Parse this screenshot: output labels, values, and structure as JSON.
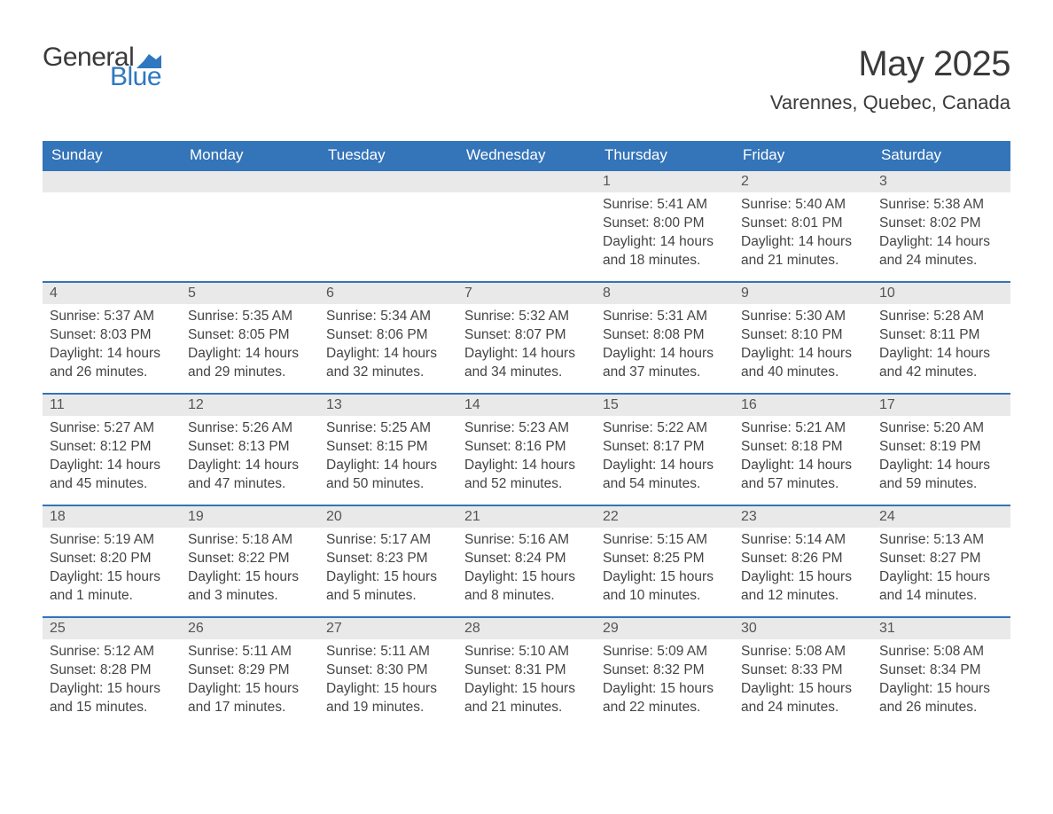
{
  "brand": {
    "word1": "General",
    "word2": "Blue",
    "flag_color": "#2f78c0",
    "text_dark": "#3a3a3a"
  },
  "header": {
    "title": "May 2025",
    "location": "Varennes, Quebec, Canada"
  },
  "colors": {
    "header_bg": "#3474b8",
    "header_text": "#ffffff",
    "row_border": "#3474b8",
    "daynum_bg": "#e9e9e9",
    "daynum_text": "#555555",
    "body_text": "#444444",
    "page_bg": "#ffffff"
  },
  "weekdays": [
    "Sunday",
    "Monday",
    "Tuesday",
    "Wednesday",
    "Thursday",
    "Friday",
    "Saturday"
  ],
  "first_weekday_index": 4,
  "days": [
    {
      "n": 1,
      "sunrise": "5:41 AM",
      "sunset": "8:00 PM",
      "daylight": "14 hours and 18 minutes."
    },
    {
      "n": 2,
      "sunrise": "5:40 AM",
      "sunset": "8:01 PM",
      "daylight": "14 hours and 21 minutes."
    },
    {
      "n": 3,
      "sunrise": "5:38 AM",
      "sunset": "8:02 PM",
      "daylight": "14 hours and 24 minutes."
    },
    {
      "n": 4,
      "sunrise": "5:37 AM",
      "sunset": "8:03 PM",
      "daylight": "14 hours and 26 minutes."
    },
    {
      "n": 5,
      "sunrise": "5:35 AM",
      "sunset": "8:05 PM",
      "daylight": "14 hours and 29 minutes."
    },
    {
      "n": 6,
      "sunrise": "5:34 AM",
      "sunset": "8:06 PM",
      "daylight": "14 hours and 32 minutes."
    },
    {
      "n": 7,
      "sunrise": "5:32 AM",
      "sunset": "8:07 PM",
      "daylight": "14 hours and 34 minutes."
    },
    {
      "n": 8,
      "sunrise": "5:31 AM",
      "sunset": "8:08 PM",
      "daylight": "14 hours and 37 minutes."
    },
    {
      "n": 9,
      "sunrise": "5:30 AM",
      "sunset": "8:10 PM",
      "daylight": "14 hours and 40 minutes."
    },
    {
      "n": 10,
      "sunrise": "5:28 AM",
      "sunset": "8:11 PM",
      "daylight": "14 hours and 42 minutes."
    },
    {
      "n": 11,
      "sunrise": "5:27 AM",
      "sunset": "8:12 PM",
      "daylight": "14 hours and 45 minutes."
    },
    {
      "n": 12,
      "sunrise": "5:26 AM",
      "sunset": "8:13 PM",
      "daylight": "14 hours and 47 minutes."
    },
    {
      "n": 13,
      "sunrise": "5:25 AM",
      "sunset": "8:15 PM",
      "daylight": "14 hours and 50 minutes."
    },
    {
      "n": 14,
      "sunrise": "5:23 AM",
      "sunset": "8:16 PM",
      "daylight": "14 hours and 52 minutes."
    },
    {
      "n": 15,
      "sunrise": "5:22 AM",
      "sunset": "8:17 PM",
      "daylight": "14 hours and 54 minutes."
    },
    {
      "n": 16,
      "sunrise": "5:21 AM",
      "sunset": "8:18 PM",
      "daylight": "14 hours and 57 minutes."
    },
    {
      "n": 17,
      "sunrise": "5:20 AM",
      "sunset": "8:19 PM",
      "daylight": "14 hours and 59 minutes."
    },
    {
      "n": 18,
      "sunrise": "5:19 AM",
      "sunset": "8:20 PM",
      "daylight": "15 hours and 1 minute."
    },
    {
      "n": 19,
      "sunrise": "5:18 AM",
      "sunset": "8:22 PM",
      "daylight": "15 hours and 3 minutes."
    },
    {
      "n": 20,
      "sunrise": "5:17 AM",
      "sunset": "8:23 PM",
      "daylight": "15 hours and 5 minutes."
    },
    {
      "n": 21,
      "sunrise": "5:16 AM",
      "sunset": "8:24 PM",
      "daylight": "15 hours and 8 minutes."
    },
    {
      "n": 22,
      "sunrise": "5:15 AM",
      "sunset": "8:25 PM",
      "daylight": "15 hours and 10 minutes."
    },
    {
      "n": 23,
      "sunrise": "5:14 AM",
      "sunset": "8:26 PM",
      "daylight": "15 hours and 12 minutes."
    },
    {
      "n": 24,
      "sunrise": "5:13 AM",
      "sunset": "8:27 PM",
      "daylight": "15 hours and 14 minutes."
    },
    {
      "n": 25,
      "sunrise": "5:12 AM",
      "sunset": "8:28 PM",
      "daylight": "15 hours and 15 minutes."
    },
    {
      "n": 26,
      "sunrise": "5:11 AM",
      "sunset": "8:29 PM",
      "daylight": "15 hours and 17 minutes."
    },
    {
      "n": 27,
      "sunrise": "5:11 AM",
      "sunset": "8:30 PM",
      "daylight": "15 hours and 19 minutes."
    },
    {
      "n": 28,
      "sunrise": "5:10 AM",
      "sunset": "8:31 PM",
      "daylight": "15 hours and 21 minutes."
    },
    {
      "n": 29,
      "sunrise": "5:09 AM",
      "sunset": "8:32 PM",
      "daylight": "15 hours and 22 minutes."
    },
    {
      "n": 30,
      "sunrise": "5:08 AM",
      "sunset": "8:33 PM",
      "daylight": "15 hours and 24 minutes."
    },
    {
      "n": 31,
      "sunrise": "5:08 AM",
      "sunset": "8:34 PM",
      "daylight": "15 hours and 26 minutes."
    }
  ],
  "labels": {
    "sunrise": "Sunrise:",
    "sunset": "Sunset:",
    "daylight": "Daylight:"
  }
}
